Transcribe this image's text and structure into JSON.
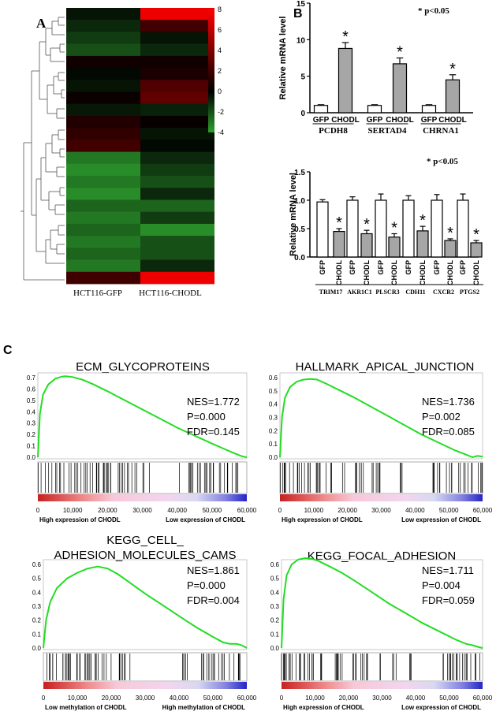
{
  "panel_a": {
    "letter": "A",
    "columns": [
      "HCT116-GFP",
      "HCT116-CHODL"
    ],
    "colorbar_ticks": [
      "8",
      "6",
      "4",
      "2",
      "0",
      "-2",
      "-4"
    ],
    "chart_data": {
      "type": "heatmap",
      "columns": [
        "HCT116-GFP",
        "HCT116-CHODL"
      ],
      "color_min": -4,
      "color_max": 8,
      "colors": {
        "low": "#2ea02e",
        "mid": "#000000",
        "high": "#ff0000"
      },
      "values": [
        [
          -0.5,
          7.5
        ],
        [
          -1.0,
          2.0
        ],
        [
          -1.5,
          -0.5
        ],
        [
          -2.0,
          -1.0
        ],
        [
          0.5,
          0.5
        ],
        [
          -0.2,
          0.8
        ],
        [
          -0.5,
          2.5
        ],
        [
          0.3,
          3.0
        ],
        [
          -0.6,
          -0.8
        ],
        [
          1.0,
          0.2
        ],
        [
          1.5,
          -0.5
        ],
        [
          2.0,
          -0.2
        ],
        [
          -3.0,
          -1.0
        ],
        [
          -3.5,
          -1.5
        ],
        [
          -3.0,
          -2.0
        ],
        [
          -3.5,
          -1.0
        ],
        [
          -2.5,
          -2.5
        ],
        [
          -3.0,
          -1.5
        ],
        [
          -2.5,
          -3.5
        ],
        [
          -3.0,
          -2.0
        ],
        [
          -2.5,
          -2.0
        ],
        [
          -3.0,
          -1.0
        ],
        [
          2.0,
          7.5
        ]
      ]
    }
  },
  "panel_b": {
    "letter": "B",
    "top": {
      "significance_note": "* p<0.05",
      "chart_data": {
        "type": "bar",
        "ylabel": "Relative mRNA level",
        "ylim": [
          0,
          15
        ],
        "yticks": [
          0,
          5,
          10,
          15
        ],
        "bars": [
          {
            "gene": "PCDH8",
            "group": "GFP",
            "value": 1.0,
            "err": 0.1,
            "sig": false
          },
          {
            "gene": "PCDH8",
            "group": "CHODL",
            "value": 8.8,
            "err": 0.8,
            "sig": true
          },
          {
            "gene": "SERTAD4",
            "group": "GFP",
            "value": 1.0,
            "err": 0.1,
            "sig": false
          },
          {
            "gene": "SERTAD4",
            "group": "CHODL",
            "value": 6.7,
            "err": 0.8,
            "sig": true
          },
          {
            "gene": "CHRNA1",
            "group": "GFP",
            "value": 1.0,
            "err": 0.1,
            "sig": false
          },
          {
            "gene": "CHRNA1",
            "group": "CHODL",
            "value": 4.5,
            "err": 0.7,
            "sig": true
          }
        ],
        "genes": [
          "PCDH8",
          "SERTAD4",
          "CHRNA1"
        ]
      }
    },
    "bottom": {
      "significance_note": "* p<0.05",
      "chart_data": {
        "type": "bar",
        "ylabel": "Relative mRNA level",
        "ylim": [
          0,
          1.5
        ],
        "yticks": [
          "0.0",
          "0.5",
          "1.0",
          "1.5"
        ],
        "bars": [
          {
            "gene": "TRIM17",
            "group": "GFP",
            "value": 0.97,
            "err": 0.04,
            "sig": false
          },
          {
            "gene": "TRIM17",
            "group": "CHODL",
            "value": 0.45,
            "err": 0.05,
            "sig": true
          },
          {
            "gene": "AKR1C1",
            "group": "GFP",
            "value": 1.0,
            "err": 0.06,
            "sig": false
          },
          {
            "gene": "AKR1C1",
            "group": "CHODL",
            "value": 0.41,
            "err": 0.06,
            "sig": true
          },
          {
            "gene": "PLSCR3",
            "group": "GFP",
            "value": 1.0,
            "err": 0.11,
            "sig": false
          },
          {
            "gene": "PLSCR3",
            "group": "CHODL",
            "value": 0.35,
            "err": 0.06,
            "sig": true
          },
          {
            "gene": "CDH11",
            "group": "GFP",
            "value": 1.0,
            "err": 0.08,
            "sig": false
          },
          {
            "gene": "CDH11",
            "group": "CHODL",
            "value": 0.46,
            "err": 0.08,
            "sig": true
          },
          {
            "gene": "CXCR2",
            "group": "GFP",
            "value": 1.0,
            "err": 0.1,
            "sig": false
          },
          {
            "gene": "CXCR2",
            "group": "CHODL",
            "value": 0.29,
            "err": 0.03,
            "sig": true
          },
          {
            "gene": "PTGS2",
            "group": "GFP",
            "value": 1.0,
            "err": 0.11,
            "sig": false
          },
          {
            "gene": "PTGS2",
            "group": "CHODL",
            "value": 0.25,
            "err": 0.04,
            "sig": true
          }
        ],
        "genes": [
          "TRIM17",
          "AKR1C1",
          "PLSCR3",
          "CDH11",
          "CXCR2",
          "PTGS2"
        ]
      }
    }
  },
  "panel_c": {
    "letter": "C",
    "chart_data": [
      {
        "type": "line",
        "title": "ECM_GLYCOPROTEINS",
        "stats": [
          "NES=1.772",
          "P=0.000",
          "FDR=0.145"
        ],
        "ylim": [
          0,
          0.7
        ],
        "yticks": [
          "0.0",
          "0.1",
          "0.2",
          "0.3",
          "0.4",
          "0.5",
          "0.6",
          "0.7"
        ],
        "xticks": [
          "0",
          "10,000",
          "20,000",
          "30,000",
          "40,000",
          "50,000",
          "60,000"
        ],
        "xlim": [
          0,
          60000
        ],
        "label_left": "High expression of CHODL",
        "label_right": "Low expression of CHODL",
        "x": [
          0,
          600,
          1500,
          3000,
          5000,
          7000,
          8000,
          10000,
          13000,
          16000,
          20000,
          25000,
          30000,
          35000,
          40000,
          45000,
          50000,
          53000,
          56000,
          58000,
          59000,
          60000
        ],
        "y": [
          0,
          0.38,
          0.55,
          0.64,
          0.69,
          0.71,
          0.712,
          0.705,
          0.68,
          0.64,
          0.58,
          0.5,
          0.42,
          0.34,
          0.26,
          0.19,
          0.12,
          0.08,
          0.04,
          0.015,
          0.005,
          0
        ],
        "hit_ranges": [
          [
            0,
            21500
          ],
          [
            23000,
            30500
          ],
          [
            31500,
            32500
          ],
          [
            40500,
            41000
          ],
          [
            43000,
            60000
          ]
        ]
      },
      {
        "type": "line",
        "title": "HALLMARK_APICAL_JUNCTION",
        "stats": [
          "NES=1.736",
          "P=0.002",
          "FDR=0.085"
        ],
        "ylim": [
          0,
          0.6
        ],
        "yticks": [
          "0.0",
          "0.1",
          "0.2",
          "0.3",
          "0.4",
          "0.5",
          "0.6"
        ],
        "xticks": [
          "0",
          "10,000",
          "20,000",
          "30,000",
          "40,000",
          "50,000",
          "60,000"
        ],
        "xlim": [
          0,
          60000
        ],
        "label_left": "High expression of CHODL",
        "label_right": "Low expression of CHODL",
        "x": [
          0,
          600,
          1500,
          3000,
          5000,
          7000,
          9000,
          11000,
          14000,
          18000,
          22000,
          27000,
          32000,
          37000,
          42000,
          47000,
          52000,
          55000,
          57000,
          58500,
          60000
        ],
        "y": [
          0,
          0.3,
          0.45,
          0.53,
          0.57,
          0.585,
          0.59,
          0.585,
          0.55,
          0.5,
          0.45,
          0.38,
          0.31,
          0.24,
          0.17,
          0.11,
          0.05,
          0.02,
          0.0,
          0.01,
          0.005
        ],
        "hit_ranges": [
          [
            0,
            19500
          ],
          [
            21000,
            25000
          ],
          [
            27000,
            30000
          ],
          [
            35500,
            36500
          ],
          [
            45000,
            60000
          ]
        ]
      },
      {
        "type": "line",
        "title": "KEGG_CELL_ADHESION_MOLECULES_CAMS",
        "stats": [
          "NES=1.861",
          "P=0.000",
          "FDR=0.004"
        ],
        "ylim": [
          0,
          0.6
        ],
        "yticks": [
          "0.0",
          "0.1",
          "0.2",
          "0.3",
          "0.4",
          "0.5",
          "0.6"
        ],
        "xticks": [
          "0",
          "10,000",
          "20,000",
          "30,000",
          "40,000",
          "50,000",
          "60,000"
        ],
        "xlim": [
          0,
          60000
        ],
        "label_left": "Low methylation of CHODL",
        "label_right": "High methylation of CHODL",
        "x": [
          0,
          800,
          2000,
          4000,
          7000,
          10000,
          13000,
          16000,
          19000,
          22000,
          26000,
          30000,
          35000,
          40000,
          45000,
          50000,
          53000,
          55000,
          57000,
          58500,
          60000
        ],
        "y": [
          0,
          0.2,
          0.33,
          0.43,
          0.5,
          0.54,
          0.57,
          0.585,
          0.57,
          0.53,
          0.46,
          0.39,
          0.31,
          0.23,
          0.15,
          0.08,
          0.04,
          0.03,
          0.03,
          0.02,
          0.0
        ],
        "hit_ranges": [
          [
            0,
            20000
          ],
          [
            22000,
            26000
          ],
          [
            38000,
            39500
          ],
          [
            41000,
            43000
          ],
          [
            46000,
            58000
          ]
        ]
      },
      {
        "type": "line",
        "title": "KEGG_FOCAL_ADHESION",
        "stats": [
          "NES=1.711",
          "P=0.004",
          "FDR=0.059"
        ],
        "ylim": [
          0,
          0.6
        ],
        "yticks": [
          "0.0",
          "0.1",
          "0.2",
          "0.3",
          "0.4",
          "0.5",
          "0.6"
        ],
        "xticks": [
          "0",
          "10,000",
          "20,000",
          "30,000",
          "40,000",
          "50,000",
          "60,000"
        ],
        "xlim": [
          0,
          60000
        ],
        "label_left": "High expression of CHODL",
        "label_right": "Low expression of CHODL",
        "x": [
          0,
          600,
          1500,
          3000,
          5000,
          7000,
          9000,
          11000,
          14000,
          18000,
          22000,
          27000,
          32000,
          37000,
          42000,
          47000,
          52000,
          55000,
          57000,
          59000,
          60000
        ],
        "y": [
          0,
          0.35,
          0.52,
          0.6,
          0.635,
          0.645,
          0.64,
          0.625,
          0.59,
          0.54,
          0.48,
          0.4,
          0.32,
          0.25,
          0.18,
          0.12,
          0.06,
          0.03,
          0.02,
          0.005,
          0.0
        ],
        "hit_ranges": [
          [
            0,
            20000
          ],
          [
            21000,
            27000
          ],
          [
            29000,
            30000
          ],
          [
            33000,
            34500
          ],
          [
            38000,
            39000
          ],
          [
            48000,
            60000
          ]
        ]
      }
    ]
  }
}
